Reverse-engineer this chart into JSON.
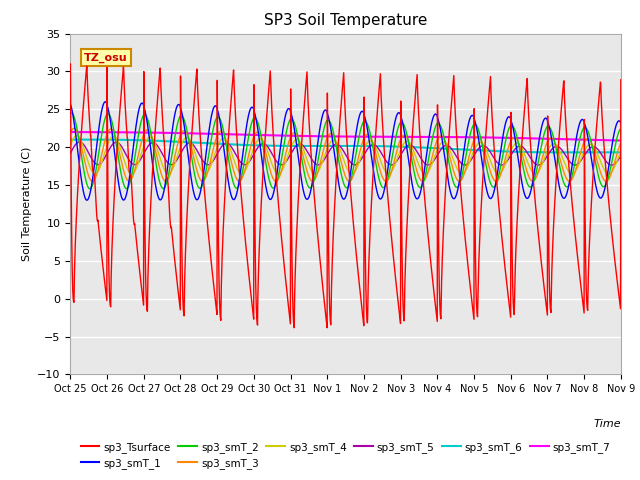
{
  "title": "SP3 Soil Temperature",
  "ylabel": "Soil Temperature (C)",
  "xlabel": "Time",
  "ylim": [
    -10,
    35
  ],
  "yticks": [
    -10,
    -5,
    0,
    5,
    10,
    15,
    20,
    25,
    30,
    35
  ],
  "xtick_labels": [
    "Oct 25",
    "Oct 26",
    "Oct 27",
    "Oct 28",
    "Oct 29",
    "Oct 30",
    "Oct 31",
    "Nov 1",
    "Nov 2",
    "Nov 3",
    "Nov 4",
    "Nov 5",
    "Nov 6",
    "Nov 7",
    "Nov 8",
    "Nov 9"
  ],
  "bg_color": "#ffffff",
  "plot_bg_color": "#e8e8e8",
  "colors": {
    "Tsurface": "#ff0000",
    "smT1": "#0000ff",
    "smT2": "#00cc00",
    "smT3": "#ff8800",
    "smT4": "#cccc00",
    "smT5": "#aa00aa",
    "smT6": "#00cccc",
    "smT7": "#ff00ff"
  },
  "legend_entries": [
    "sp3_Tsurface",
    "sp3_smT_1",
    "sp3_smT_2",
    "sp3_smT_3",
    "sp3_smT_4",
    "sp3_smT_5",
    "sp3_smT_6",
    "sp3_smT_7"
  ],
  "annotation_text": "TZ_osu",
  "annotation_color": "#cc0000",
  "annotation_bg": "#ffffaa",
  "annotation_border": "#cc8800"
}
